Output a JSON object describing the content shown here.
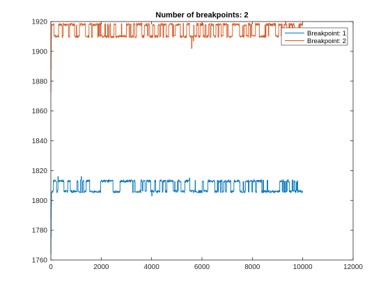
{
  "chart_data": {
    "type": "line",
    "title": "Number of breakpoints: 2",
    "xlabel": "",
    "ylabel": "",
    "xlim": [
      0,
      12000
    ],
    "ylim": [
      1760,
      1920
    ],
    "xticks": [
      0,
      2000,
      4000,
      6000,
      8000,
      10000,
      12000
    ],
    "yticks": [
      1760,
      1780,
      1800,
      1820,
      1840,
      1860,
      1880,
      1900,
      1920
    ],
    "xtick_labels": [
      "0",
      "2000",
      "4000",
      "6000",
      "8000",
      "10000",
      "12000"
    ],
    "ytick_labels": [
      "1760",
      "1780",
      "1800",
      "1820",
      "1840",
      "1860",
      "1880",
      "1900",
      "1920"
    ],
    "grid": false,
    "legend_position": "top-right",
    "series": [
      {
        "name": "Breakpoint: 1",
        "color": "#0072BD",
        "x_range": [
          0,
          10000
        ],
        "start_values": [
          1764,
          1775,
          1788,
          1797,
          1805
        ],
        "levels": [
          1806,
          1813
        ],
        "spikes": [
          [
            270,
            1816
          ],
          [
            1200,
            1816
          ],
          [
            4000,
            1803
          ],
          [
            5500,
            1815
          ],
          [
            9400,
            1814
          ]
        ]
      },
      {
        "name": "Breakpoint: 2",
        "color": "#D95319",
        "x_range": [
          0,
          10000
        ],
        "start_values": [
          1873,
          1888,
          1901,
          1909,
          1912
        ],
        "levels": [
          1910,
          1918
        ],
        "spikes": [
          [
            5580,
            1902
          ],
          [
            5650,
            1907
          ],
          [
            3600,
            1919
          ],
          [
            9300,
            1920
          ],
          [
            9600,
            1918
          ]
        ]
      }
    ]
  }
}
